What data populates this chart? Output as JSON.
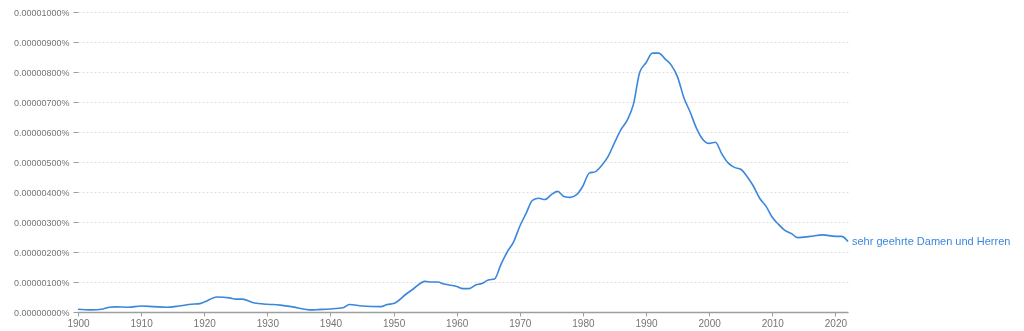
{
  "chart_data": {
    "type": "line",
    "x": [
      1900,
      1902,
      1904,
      1905,
      1906,
      1908,
      1910,
      1912,
      1914,
      1916,
      1918,
      1919,
      1920,
      1922,
      1924,
      1925,
      1926,
      1928,
      1930,
      1932,
      1934,
      1937,
      1938,
      1940,
      1942,
      1943,
      1945,
      1948,
      1949,
      1950,
      1952,
      1953,
      1955,
      1956,
      1957,
      1958,
      1960,
      1961,
      1962,
      1963,
      1964,
      1965,
      1966,
      1967,
      1968,
      1969,
      1970,
      1971,
      1972,
      1973,
      1974,
      1975,
      1976,
      1977,
      1978,
      1979,
      1980,
      1981,
      1982,
      1983,
      1984,
      1985,
      1986,
      1987,
      1988,
      1989,
      1990,
      1991,
      1992,
      1993,
      1994,
      1995,
      1996,
      1997,
      1998,
      1999,
      2000,
      2001,
      2002,
      2003,
      2004,
      2005,
      2006,
      2007,
      2008,
      2009,
      2010,
      2011,
      2012,
      2013,
      2014,
      2016,
      2018,
      2020,
      2021,
      2022
    ],
    "series": [
      {
        "name": "sehr geehrte Damen und Herren",
        "color": "#3b87dc",
        "values": [
          9e-08,
          7e-08,
          1e-07,
          1.6e-07,
          1.7e-07,
          1.6e-07,
          2e-07,
          1.8e-07,
          1.6e-07,
          2e-07,
          2.6e-07,
          2.7e-07,
          3.3e-07,
          5e-07,
          4.7e-07,
          4.3e-07,
          4.3e-07,
          3e-07,
          2.6e-07,
          2.3e-07,
          1.7e-07,
          7e-08,
          8e-08,
          1e-07,
          1.4e-07,
          2.5e-07,
          2e-07,
          1.8e-07,
          2.5e-07,
          2.8e-07,
          6e-07,
          7.5e-07,
          1.02e-06,
          1e-06,
          1e-06,
          9.3e-07,
          8.5e-07,
          7.8e-07,
          7.8e-07,
          9e-07,
          9.5e-07,
          1.07e-06,
          1.1e-06,
          1.58e-06,
          2e-06,
          2.33e-06,
          2.86e-06,
          3.29e-06,
          3.72e-06,
          3.79e-06,
          3.75e-06,
          3.91e-06,
          4.02e-06,
          3.85e-06,
          3.82e-06,
          3.91e-06,
          4.2e-06,
          4.63e-06,
          4.68e-06,
          4.89e-06,
          5.19e-06,
          5.64e-06,
          6.07e-06,
          6.39e-06,
          6.92e-06,
          7.99e-06,
          8.31e-06,
          8.63e-06,
          8.63e-06,
          8.44e-06,
          8.23e-06,
          7.83e-06,
          7.14e-06,
          6.66e-06,
          6.12e-06,
          5.75e-06,
          5.62e-06,
          5.66e-06,
          5.27e-06,
          4.97e-06,
          4.82e-06,
          4.76e-06,
          4.52e-06,
          4.2e-06,
          3.79e-06,
          3.53e-06,
          3.16e-06,
          2.92e-06,
          2.72e-06,
          2.62e-06,
          2.48e-06,
          2.52e-06,
          2.57e-06,
          2.52e-06,
          2.52e-06,
          2.35e-06
        ]
      }
    ],
    "xlim": [
      1900,
      2022
    ],
    "xticks": [
      1900,
      1910,
      1920,
      1930,
      1940,
      1950,
      1960,
      1970,
      1980,
      1990,
      2000,
      2010,
      2020
    ],
    "ylim": [
      0,
      1e-05
    ],
    "yticks": [
      {
        "value": 0,
        "label": "0.00000000%"
      },
      {
        "value": 1e-06,
        "label": "0.00000100%"
      },
      {
        "value": 2e-06,
        "label": "0.00000200%"
      },
      {
        "value": 3e-06,
        "label": "0.00000300%"
      },
      {
        "value": 4e-06,
        "label": "0.00000400%"
      },
      {
        "value": 5e-06,
        "label": "0.00000500%"
      },
      {
        "value": 6e-06,
        "label": "0.00000600%"
      },
      {
        "value": 7e-06,
        "label": "0.00000700%"
      },
      {
        "value": 8e-06,
        "label": "0.00000800%"
      },
      {
        "value": 9e-06,
        "label": "0.00000900%"
      },
      {
        "value": 1e-05,
        "label": "0.00001000%"
      }
    ],
    "grid": "y",
    "marker": "none",
    "line_style": "solid"
  }
}
